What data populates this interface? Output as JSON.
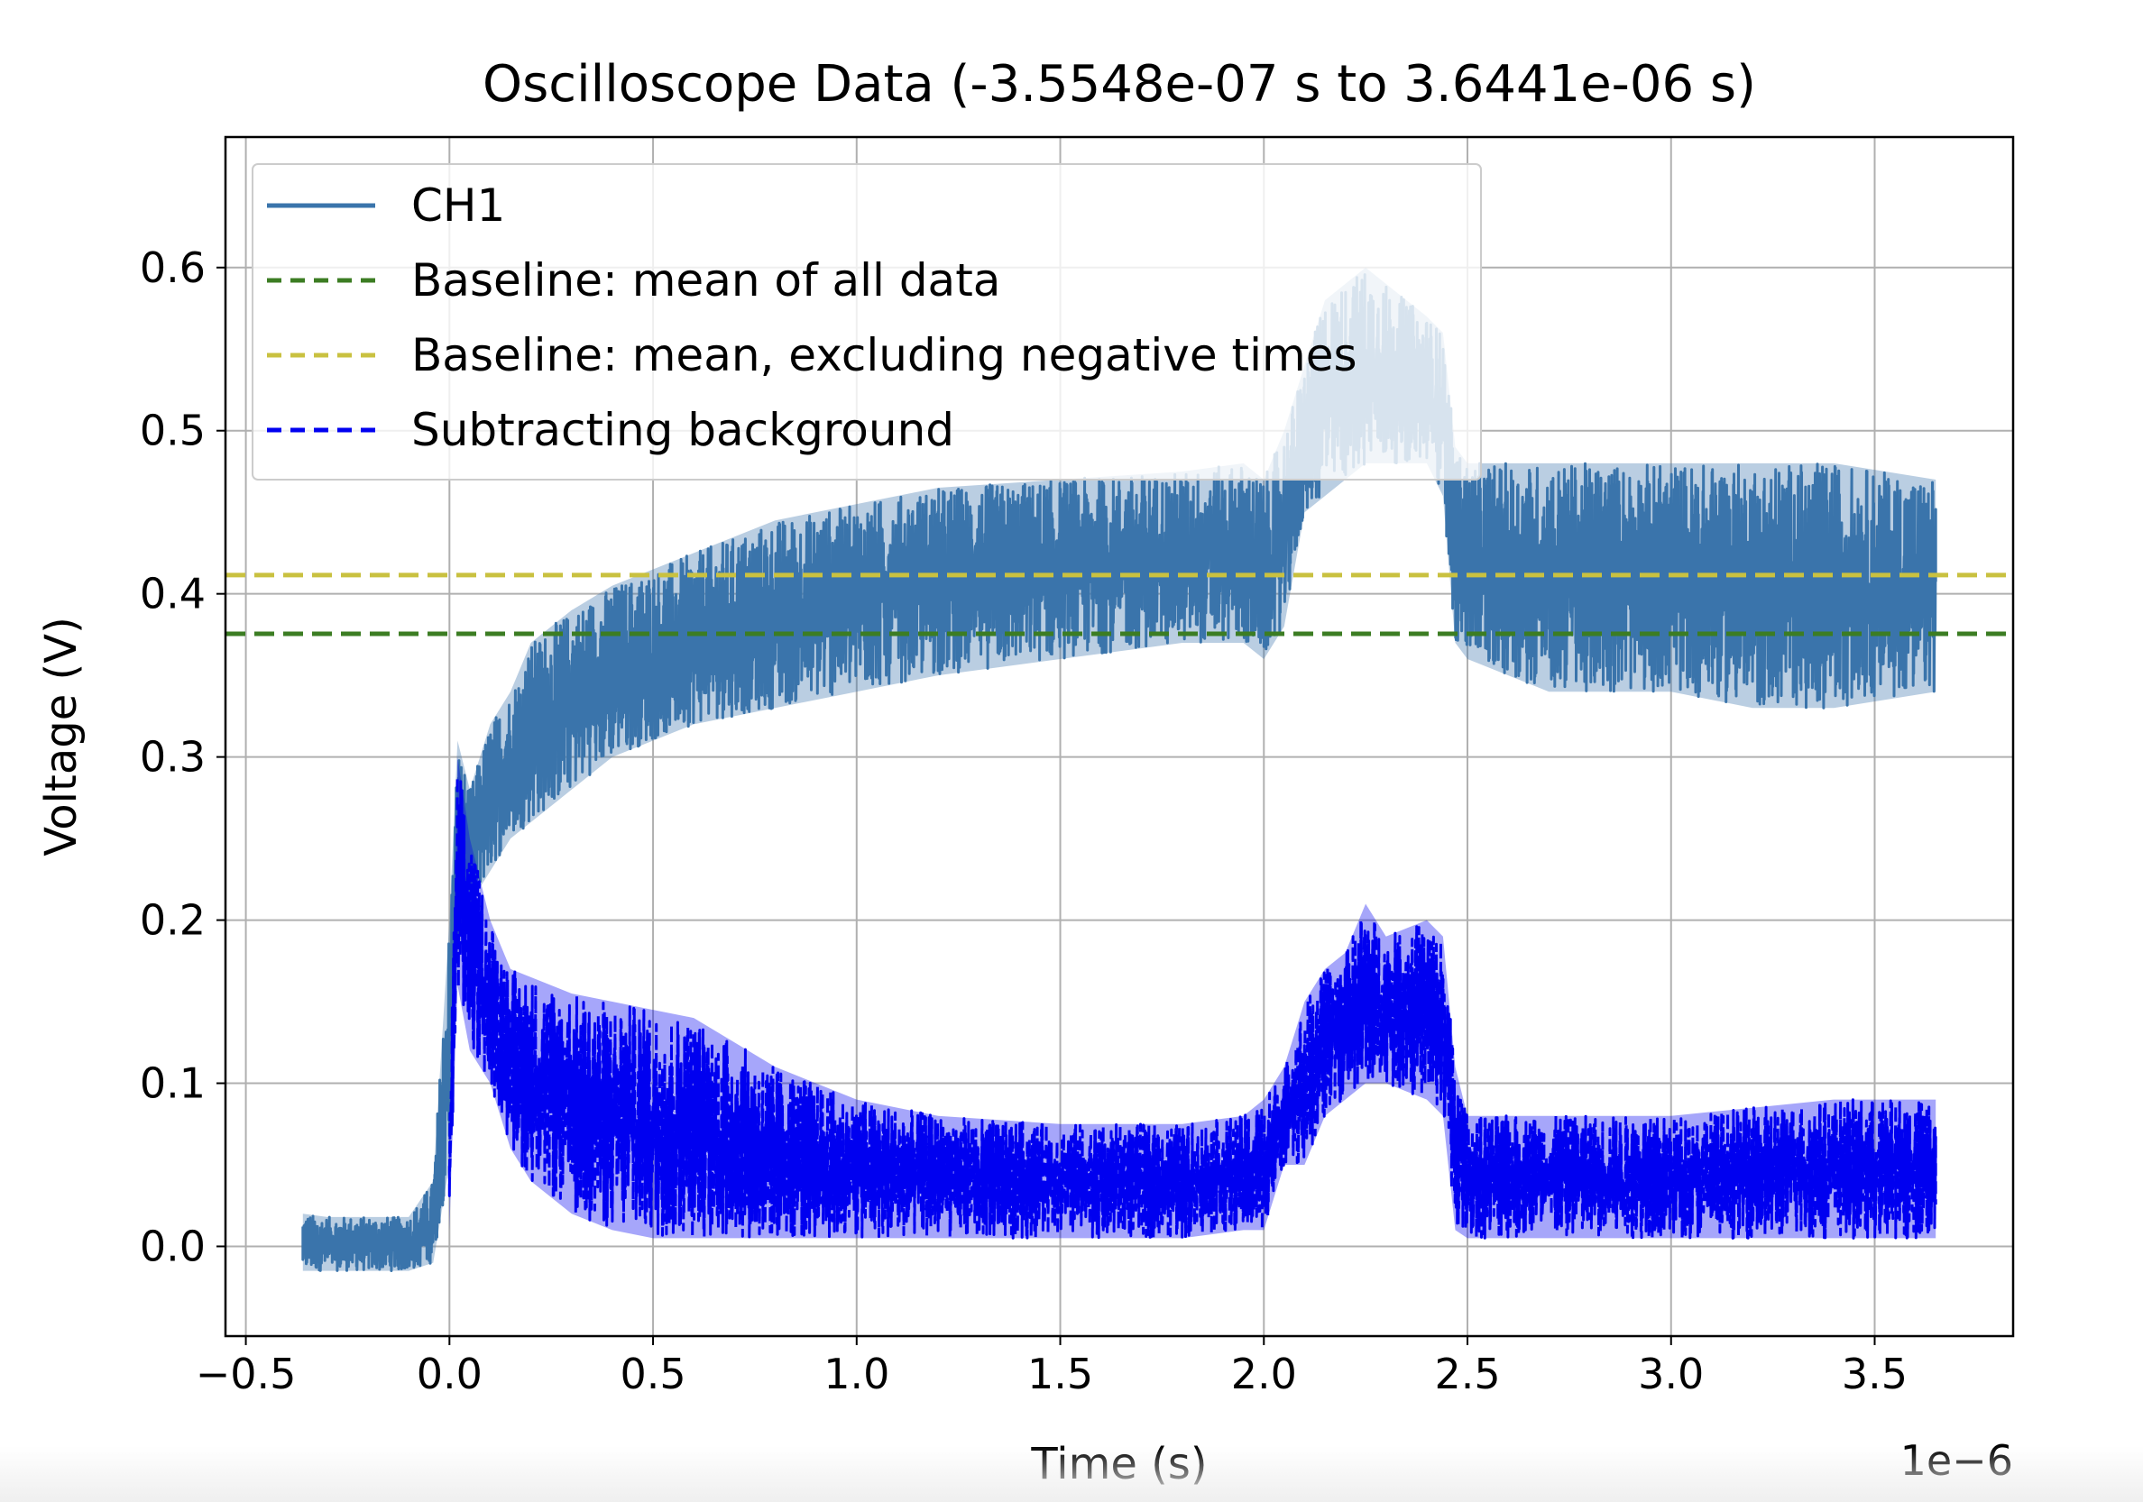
{
  "chart_data": {
    "type": "line",
    "title": "Oscilloscope Data (-3.5548e-07 s to 3.6441e-06 s)",
    "xlabel": "Time (s)",
    "ylabel": "Voltage (V)",
    "x_offset_label": "1e−6",
    "xlim": [
      -0.55,
      3.84
    ],
    "ylim": [
      -0.055,
      0.68
    ],
    "x_ticks": [
      -0.5,
      0.0,
      0.5,
      1.0,
      1.5,
      2.0,
      2.5,
      3.0,
      3.5
    ],
    "x_tick_labels": [
      "−0.5",
      "0.0",
      "0.5",
      "1.0",
      "1.5",
      "2.0",
      "2.5",
      "3.0",
      "3.5"
    ],
    "y_ticks": [
      0.0,
      0.1,
      0.2,
      0.3,
      0.4,
      0.5,
      0.6
    ],
    "y_tick_labels": [
      "0.0",
      "0.1",
      "0.2",
      "0.3",
      "0.4",
      "0.5",
      "0.6"
    ],
    "grid": true,
    "legend_placement": "upper-left",
    "series": [
      {
        "name": "CH1",
        "color": "#3a74ab",
        "style": "solid",
        "envelope": {
          "x": [
            -0.36,
            -0.3,
            -0.2,
            -0.1,
            -0.04,
            0.0,
            0.02,
            0.05,
            0.1,
            0.15,
            0.2,
            0.3,
            0.4,
            0.5,
            0.6,
            0.8,
            1.0,
            1.2,
            1.5,
            1.8,
            1.95,
            2.0,
            2.05,
            2.1,
            2.15,
            2.2,
            2.25,
            2.3,
            2.4,
            2.44,
            2.47,
            2.5,
            2.7,
            3.0,
            3.2,
            3.4,
            3.65
          ],
          "upper": [
            0.02,
            0.018,
            0.018,
            0.018,
            0.04,
            0.2,
            0.31,
            0.28,
            0.32,
            0.34,
            0.37,
            0.39,
            0.405,
            0.415,
            0.425,
            0.445,
            0.455,
            0.465,
            0.47,
            0.475,
            0.48,
            0.47,
            0.5,
            0.54,
            0.58,
            0.59,
            0.6,
            0.59,
            0.57,
            0.56,
            0.49,
            0.48,
            0.48,
            0.48,
            0.48,
            0.48,
            0.47
          ],
          "lower": [
            -0.015,
            -0.015,
            -0.015,
            -0.015,
            -0.01,
            0.05,
            0.18,
            0.21,
            0.23,
            0.25,
            0.26,
            0.28,
            0.3,
            0.31,
            0.32,
            0.33,
            0.34,
            0.35,
            0.36,
            0.37,
            0.37,
            0.36,
            0.38,
            0.45,
            0.46,
            0.47,
            0.48,
            0.48,
            0.48,
            0.46,
            0.37,
            0.36,
            0.34,
            0.34,
            0.33,
            0.33,
            0.34
          ]
        }
      },
      {
        "name": "Baseline: mean of all data",
        "color": "#3c7d23",
        "style": "dashed",
        "value": 0.3755
      },
      {
        "name": "Baseline: mean, excluding negative times",
        "color": "#c9c140",
        "style": "dashed",
        "value": 0.4115
      },
      {
        "name": "Subtracting background",
        "color": "#0000f0",
        "style": "dashed",
        "envelope": {
          "x": [
            0.0,
            0.02,
            0.05,
            0.1,
            0.15,
            0.2,
            0.3,
            0.4,
            0.5,
            0.6,
            0.8,
            1.0,
            1.2,
            1.5,
            1.8,
            1.95,
            2.0,
            2.05,
            2.1,
            2.15,
            2.2,
            2.25,
            2.3,
            2.4,
            2.44,
            2.47,
            2.5,
            2.7,
            3.0,
            3.2,
            3.4,
            3.65
          ],
          "upper": [
            0.07,
            0.3,
            0.25,
            0.2,
            0.17,
            0.165,
            0.155,
            0.15,
            0.145,
            0.14,
            0.11,
            0.09,
            0.08,
            0.075,
            0.075,
            0.08,
            0.09,
            0.11,
            0.15,
            0.17,
            0.18,
            0.21,
            0.19,
            0.2,
            0.19,
            0.11,
            0.08,
            0.08,
            0.08,
            0.085,
            0.09,
            0.09
          ],
          "lower": [
            0.01,
            0.16,
            0.12,
            0.1,
            0.06,
            0.04,
            0.02,
            0.01,
            0.005,
            0.005,
            0.005,
            0.005,
            0.005,
            0.005,
            0.005,
            0.01,
            0.01,
            0.05,
            0.05,
            0.08,
            0.09,
            0.1,
            0.1,
            0.09,
            0.08,
            0.01,
            0.005,
            0.005,
            0.005,
            0.005,
            0.005,
            0.005
          ]
        }
      }
    ]
  }
}
